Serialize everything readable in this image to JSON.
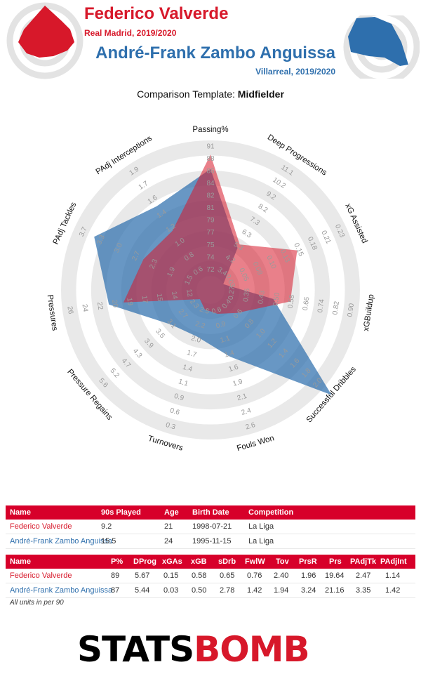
{
  "header": {
    "player1_name": "Federico Valverde",
    "player1_club": "Real Madrid, 2019/2020",
    "player2_name": "André-Frank Zambo Anguissa",
    "player2_club": "Villarreal, 2019/2020",
    "template_prefix": "Comparison Template: ",
    "template_name": "Midfielder"
  },
  "colors": {
    "player1": "#d7182a",
    "player2": "#2e6fad",
    "header_bg": "#d7002a"
  },
  "chart_data": {
    "type": "radar",
    "axes": [
      {
        "label": "Passing%",
        "ticks": [
          "72",
          "74",
          "75",
          "77",
          "79",
          "81",
          "82",
          "84",
          "86",
          "88",
          "91"
        ],
        "min": 72,
        "max": 91
      },
      {
        "label": "Deep Progressions",
        "ticks": [
          "3.4",
          "4.2",
          "5.3",
          "6.3",
          "7.3",
          "8.2",
          "9.2",
          "10.2",
          "11.1"
        ],
        "min": 3.4,
        "max": 11.1
      },
      {
        "label": "xG Assisted",
        "ticks": [
          "0.03",
          "0.05",
          "0.08",
          "0.10",
          "0.13",
          "0.15",
          "0.18",
          "0.21",
          "0.23"
        ],
        "min": 0.03,
        "max": 0.23
      },
      {
        "label": "xGBuildup",
        "ticks": [
          "0.27",
          "0.35",
          "0.43",
          "0.50",
          "0.58",
          "0.66",
          "0.74",
          "0.82",
          "0.90"
        ],
        "min": 0.27,
        "max": 0.9
      },
      {
        "label": "Successful Dribbles",
        "ticks": [
          "0.4",
          "0.6",
          "0.8",
          "1.0",
          "1.2",
          "1.4",
          "1.6",
          "1.8",
          "2.0"
        ],
        "min": 0.4,
        "max": 2.0
      },
      {
        "label": "Fouls Won",
        "ticks": [
          "0.6",
          "0.9",
          "1.1",
          "1.4",
          "1.6",
          "1.9",
          "2.1",
          "2.4",
          "2.6"
        ],
        "min": 0.6,
        "max": 2.6
      },
      {
        "label": "Turnovers",
        "ticks": [
          "2.5",
          "2.2",
          "2.0",
          "1.7",
          "1.4",
          "1.1",
          "0.9",
          "0.6",
          "0.3"
        ],
        "min": 2.5,
        "max": 0.3
      },
      {
        "label": "Pressure Regains",
        "ticks": [
          "2.3",
          "2.7",
          "3.1",
          "3.5",
          "3.9",
          "4.3",
          "4.7",
          "5.2",
          "5.6"
        ],
        "min": 2.3,
        "max": 5.6
      },
      {
        "label": "Pressures",
        "ticks": [
          "12",
          "14",
          "15",
          "17",
          "19",
          "20",
          "22",
          "24",
          "26"
        ],
        "min": 12,
        "max": 26
      },
      {
        "label": "PAdj Tackles",
        "ticks": [
          "1.5",
          "1.9",
          "2.3",
          "2.7",
          "3.0",
          "3.3",
          "3.7"
        ],
        "min": 1.5,
        "max": 3.7
      },
      {
        "label": "PAdj Interceptions",
        "ticks": [
          "0.6",
          "0.8",
          "1.0",
          "1.2",
          "1.4",
          "1.6",
          "1.7",
          "1.9"
        ],
        "min": 0.6,
        "max": 1.9
      }
    ],
    "series": [
      {
        "name": "Federico Valverde",
        "values": [
          89,
          5.67,
          0.15,
          0.58,
          0.65,
          0.76,
          2.4,
          1.96,
          19.64,
          2.47,
          1.14
        ]
      },
      {
        "name": "André-Frank Zambo Anguissa",
        "values": [
          87,
          5.44,
          0.03,
          0.5,
          2.78,
          1.42,
          1.94,
          3.24,
          21.16,
          3.35,
          1.42
        ]
      }
    ]
  },
  "table1": {
    "headers": [
      "Name",
      "90s Played",
      "Age",
      "Birth Date",
      "Competition"
    ],
    "rows": [
      [
        "Federico Valverde",
        "9.2",
        "21",
        "1998-07-21",
        "La Liga"
      ],
      [
        "André-Frank Zambo Anguissa",
        "15.5",
        "24",
        "1995-11-15",
        "La Liga"
      ]
    ]
  },
  "table2": {
    "headers": [
      "Name",
      "P%",
      "DProg",
      "xGAs",
      "xGB",
      "sDrb",
      "FwlW",
      "Tov",
      "PrsR",
      "Prs",
      "PAdjTk",
      "PAdjInt"
    ],
    "rows": [
      [
        "Federico Valverde",
        "89",
        "5.67",
        "0.15",
        "0.58",
        "0.65",
        "0.76",
        "2.40",
        "1.96",
        "19.64",
        "2.47",
        "1.14"
      ],
      [
        "André-Frank Zambo Anguissa",
        "87",
        "5.44",
        "0.03",
        "0.50",
        "2.78",
        "1.42",
        "1.94",
        "3.24",
        "21.16",
        "3.35",
        "1.42"
      ]
    ]
  },
  "footer_note": "All units in per 90",
  "logo": {
    "part1": "STATS",
    "part2": "BOMB"
  }
}
